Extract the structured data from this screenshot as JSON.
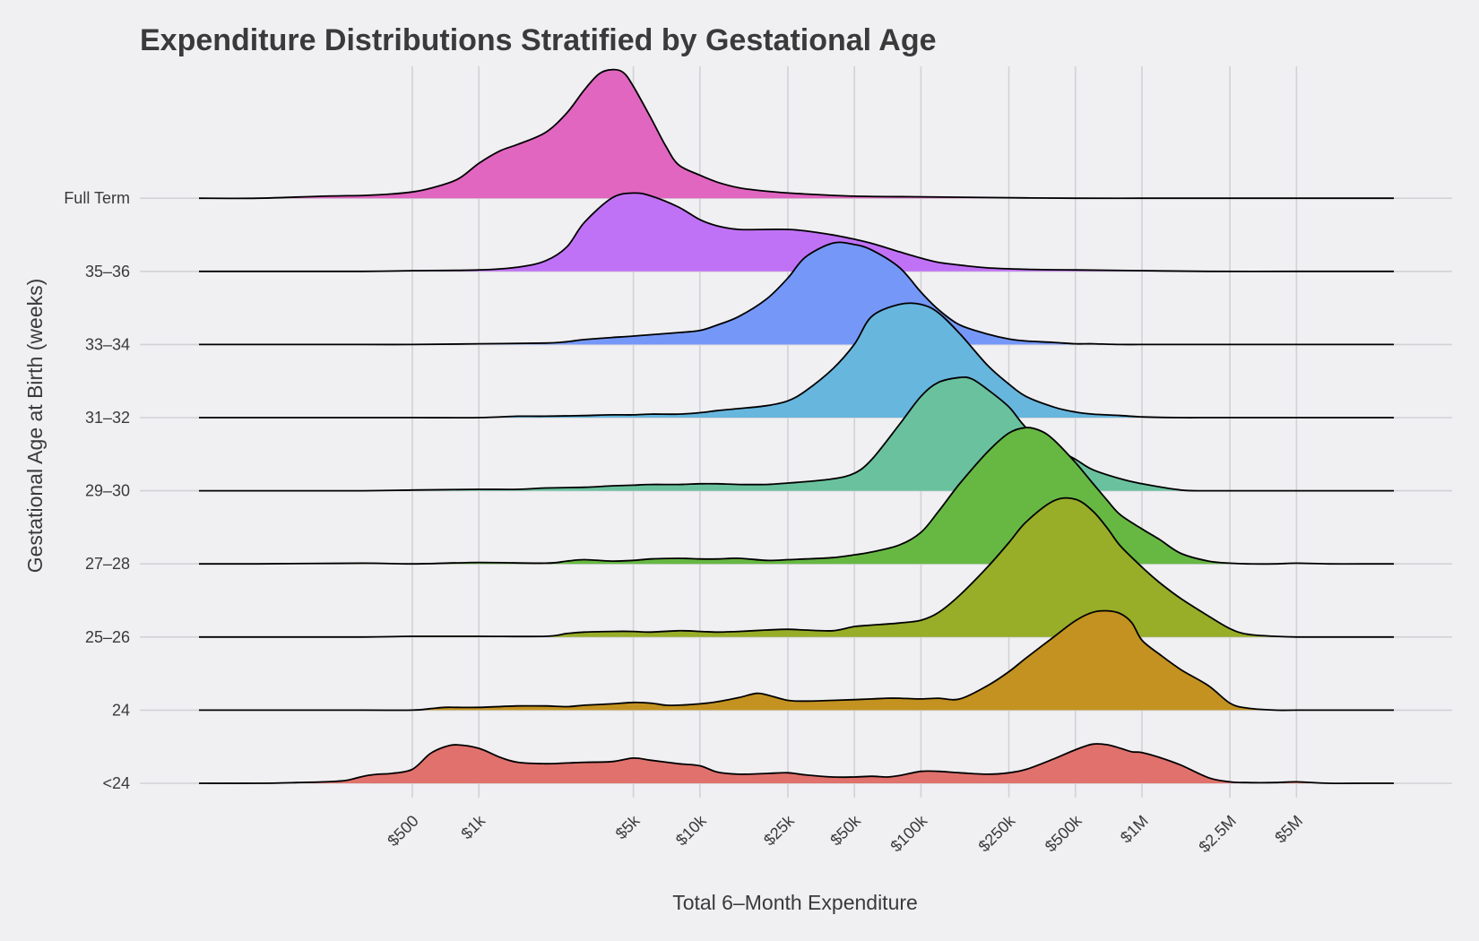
{
  "chart_data": {
    "type": "ridgeline",
    "title": "Expenditure Distributions Stratified by Gestational Age",
    "xlabel": "Total 6–Month Expenditure",
    "ylabel": "Gestational Age at Birth (weeks)",
    "x_scale": "log",
    "x_ticks": [
      {
        "value": 500,
        "label": "$500"
      },
      {
        "value": 1000,
        "label": "$1k"
      },
      {
        "value": 5000,
        "label": "$5k"
      },
      {
        "value": 10000,
        "label": "$10k"
      },
      {
        "value": 25000,
        "label": "$25k"
      },
      {
        "value": 50000,
        "label": "$50k"
      },
      {
        "value": 100000,
        "label": "$100k"
      },
      {
        "value": 250000,
        "label": "$250k"
      },
      {
        "value": 500000,
        "label": "$500k"
      },
      {
        "value": 1000000,
        "label": "$1M"
      },
      {
        "value": 2500000,
        "label": "$2.5M"
      },
      {
        "value": 5000000,
        "label": "$5M"
      }
    ],
    "grid": true,
    "legend": "none",
    "series": [
      {
        "name": "<24",
        "color": "#e0716c",
        "x": [
          50,
          100,
          150,
          200,
          250,
          300,
          350,
          400,
          500,
          600,
          700,
          800,
          1000,
          1250,
          1500,
          2000,
          2500,
          3000,
          4000,
          5000,
          6000,
          8000,
          10000,
          12000,
          15000,
          20000,
          25000,
          30000,
          40000,
          50000,
          60000,
          70000,
          80000,
          100000,
          120000,
          150000,
          200000,
          250000,
          300000,
          400000,
          500000,
          600000,
          700000,
          800000,
          900000,
          1000000,
          1200000,
          1500000,
          2000000,
          2500000,
          3000000,
          4000000,
          5000000,
          7000000,
          10000000,
          20000000
        ],
        "y": [
          0,
          0,
          0.01,
          0.02,
          0.04,
          0.1,
          0.13,
          0.14,
          0.2,
          0.42,
          0.52,
          0.55,
          0.5,
          0.37,
          0.3,
          0.28,
          0.29,
          0.3,
          0.31,
          0.36,
          0.33,
          0.28,
          0.25,
          0.16,
          0.13,
          0.14,
          0.15,
          0.12,
          0.09,
          0.09,
          0.1,
          0.09,
          0.11,
          0.17,
          0.17,
          0.15,
          0.13,
          0.15,
          0.2,
          0.35,
          0.48,
          0.56,
          0.55,
          0.5,
          0.45,
          0.44,
          0.37,
          0.26,
          0.08,
          0.02,
          0.01,
          0.01,
          0.02,
          0,
          0,
          0
        ]
      },
      {
        "name": "24",
        "color": "#c39220",
        "x": [
          50,
          100,
          300,
          500,
          600,
          700,
          800,
          1000,
          1500,
          2000,
          2500,
          3000,
          4000,
          5000,
          6000,
          7000,
          8000,
          10000,
          12000,
          15000,
          18000,
          20000,
          25000,
          30000,
          40000,
          50000,
          60000,
          70000,
          80000,
          100000,
          120000,
          150000,
          200000,
          250000,
          300000,
          400000,
          500000,
          600000,
          700000,
          800000,
          900000,
          1000000,
          1200000,
          1500000,
          2000000,
          2500000,
          3000000,
          4000000,
          5000000,
          7000000,
          10000000,
          20000000
        ],
        "y": [
          0,
          0,
          0,
          0,
          0.02,
          0.04,
          0.04,
          0.04,
          0.06,
          0.06,
          0.05,
          0.07,
          0.09,
          0.11,
          0.1,
          0.07,
          0.07,
          0.09,
          0.12,
          0.18,
          0.24,
          0.22,
          0.14,
          0.13,
          0.14,
          0.15,
          0.16,
          0.17,
          0.17,
          0.16,
          0.17,
          0.16,
          0.35,
          0.55,
          0.75,
          1.05,
          1.28,
          1.4,
          1.42,
          1.38,
          1.25,
          1.0,
          0.8,
          0.58,
          0.35,
          0.1,
          0.03,
          0,
          0,
          0,
          0,
          0
        ]
      },
      {
        "name": "25–26",
        "color": "#98ad28",
        "x": [
          50,
          100,
          300,
          500,
          1000,
          2000,
          2500,
          3000,
          4000,
          5000,
          6000,
          8000,
          10000,
          12000,
          15000,
          20000,
          25000,
          30000,
          40000,
          50000,
          60000,
          80000,
          100000,
          120000,
          150000,
          200000,
          250000,
          300000,
          400000,
          500000,
          600000,
          700000,
          800000,
          1000000,
          1200000,
          1500000,
          2000000,
          2500000,
          3000000,
          4000000,
          5000000,
          7000000,
          10000000,
          20000000
        ],
        "y": [
          0,
          0,
          0,
          0.01,
          0.01,
          0.01,
          0.05,
          0.07,
          0.08,
          0.08,
          0.07,
          0.09,
          0.08,
          0.07,
          0.08,
          0.1,
          0.11,
          0.1,
          0.09,
          0.15,
          0.17,
          0.2,
          0.24,
          0.35,
          0.6,
          1.0,
          1.35,
          1.65,
          1.95,
          1.97,
          1.8,
          1.55,
          1.3,
          1.0,
          0.78,
          0.55,
          0.3,
          0.12,
          0.04,
          0.01,
          0,
          0,
          0,
          0
        ]
      },
      {
        "name": "27–28",
        "color": "#67b843",
        "x": [
          50,
          100,
          300,
          500,
          1000,
          2000,
          2500,
          3000,
          4000,
          5000,
          6000,
          8000,
          10000,
          12000,
          15000,
          20000,
          25000,
          30000,
          40000,
          50000,
          60000,
          80000,
          100000,
          120000,
          150000,
          200000,
          250000,
          300000,
          350000,
          400000,
          500000,
          600000,
          700000,
          800000,
          1000000,
          1200000,
          1500000,
          2000000,
          2500000,
          3000000,
          4000000,
          5000000,
          7000000,
          10000000,
          20000000
        ],
        "y": [
          0,
          0,
          0.01,
          0,
          0.02,
          0.01,
          0.04,
          0.06,
          0.04,
          0.05,
          0.07,
          0.08,
          0.07,
          0.07,
          0.08,
          0.05,
          0.06,
          0.07,
          0.09,
          0.13,
          0.17,
          0.27,
          0.45,
          0.75,
          1.15,
          1.6,
          1.87,
          1.95,
          1.9,
          1.77,
          1.45,
          1.15,
          0.9,
          0.7,
          0.5,
          0.35,
          0.15,
          0.04,
          0.01,
          0,
          0,
          0.01,
          0,
          0,
          0
        ]
      },
      {
        "name": "29–30",
        "color": "#6ac19e",
        "x": [
          50,
          100,
          300,
          500,
          1000,
          1500,
          2000,
          3000,
          4000,
          5000,
          6000,
          8000,
          10000,
          12000,
          15000,
          20000,
          25000,
          30000,
          40000,
          50000,
          60000,
          80000,
          100000,
          120000,
          150000,
          170000,
          200000,
          250000,
          300000,
          400000,
          500000,
          600000,
          800000,
          1000000,
          1500000,
          2000000,
          2500000,
          3000000,
          5000000,
          10000000,
          20000000
        ],
        "y": [
          0,
          0,
          0,
          0.01,
          0.02,
          0.02,
          0.04,
          0.05,
          0.07,
          0.08,
          0.09,
          0.09,
          0.1,
          0.1,
          0.09,
          0.09,
          0.11,
          0.13,
          0.17,
          0.25,
          0.45,
          0.95,
          1.35,
          1.55,
          1.62,
          1.6,
          1.45,
          1.2,
          0.9,
          0.62,
          0.45,
          0.3,
          0.17,
          0.1,
          0.01,
          0,
          0,
          0,
          0,
          0,
          0
        ]
      },
      {
        "name": "31–32",
        "color": "#67b6de",
        "x": [
          50,
          100,
          300,
          500,
          1000,
          1500,
          2000,
          3000,
          4000,
          5000,
          6000,
          8000,
          10000,
          12000,
          15000,
          20000,
          25000,
          30000,
          40000,
          50000,
          60000,
          80000,
          100000,
          120000,
          150000,
          200000,
          250000,
          300000,
          400000,
          500000,
          600000,
          800000,
          1000000,
          1500000,
          2000000,
          3000000,
          5000000,
          10000000,
          20000000
        ],
        "y": [
          0,
          0,
          0,
          0,
          0,
          0.02,
          0.02,
          0.03,
          0.04,
          0.04,
          0.05,
          0.05,
          0.07,
          0.1,
          0.13,
          0.17,
          0.24,
          0.38,
          0.7,
          1.05,
          1.45,
          1.62,
          1.62,
          1.5,
          1.2,
          0.75,
          0.48,
          0.3,
          0.15,
          0.08,
          0.05,
          0.03,
          0.01,
          0,
          0,
          0,
          0,
          0,
          0
        ]
      },
      {
        "name": "33–34",
        "color": "#7598f8",
        "x": [
          50,
          100,
          300,
          500,
          1000,
          2000,
          2500,
          3000,
          4000,
          5000,
          6000,
          8000,
          10000,
          12000,
          15000,
          20000,
          25000,
          30000,
          40000,
          50000,
          60000,
          80000,
          100000,
          120000,
          150000,
          200000,
          250000,
          300000,
          400000,
          500000,
          600000,
          800000,
          1000000,
          1500000,
          2000000,
          3000000,
          5000000,
          10000000,
          20000000
        ],
        "y": [
          0,
          0,
          0,
          0,
          0.01,
          0.02,
          0.04,
          0.07,
          0.1,
          0.12,
          0.14,
          0.17,
          0.2,
          0.28,
          0.4,
          0.65,
          0.95,
          1.25,
          1.45,
          1.43,
          1.35,
          1.1,
          0.75,
          0.5,
          0.28,
          0.15,
          0.08,
          0.05,
          0.03,
          0.01,
          0.01,
          0,
          0,
          0,
          0,
          0,
          0,
          0,
          0
        ]
      },
      {
        "name": "35–36",
        "color": "#c072f6",
        "x": [
          50,
          100,
          300,
          500,
          1000,
          1500,
          2000,
          2500,
          3000,
          4000,
          5000,
          6000,
          8000,
          10000,
          12000,
          15000,
          20000,
          25000,
          30000,
          40000,
          50000,
          60000,
          80000,
          100000,
          120000,
          150000,
          200000,
          300000,
          500000,
          1000000,
          2000000,
          5000000,
          10000000,
          20000000
        ],
        "y": [
          0,
          0,
          0,
          0.01,
          0.02,
          0.06,
          0.15,
          0.35,
          0.7,
          1.05,
          1.12,
          1.08,
          0.92,
          0.74,
          0.65,
          0.6,
          0.6,
          0.6,
          0.58,
          0.52,
          0.46,
          0.4,
          0.28,
          0.19,
          0.13,
          0.09,
          0.05,
          0.03,
          0.02,
          0.01,
          0,
          0,
          0,
          0
        ]
      },
      {
        "name": "Full Term",
        "color": "#e066c0",
        "x": [
          50,
          100,
          200,
          300,
          400,
          500,
          600,
          800,
          1000,
          1250,
          1500,
          2000,
          2500,
          3000,
          3500,
          4000,
          4500,
          5000,
          6000,
          7000,
          8000,
          10000,
          12000,
          15000,
          20000,
          30000,
          50000,
          100000,
          200000,
          500000,
          1000000,
          2000000,
          5000000,
          10000000,
          20000000
        ],
        "y": [
          0,
          0,
          0.03,
          0.04,
          0.06,
          0.09,
          0.14,
          0.27,
          0.5,
          0.68,
          0.77,
          0.94,
          1.22,
          1.55,
          1.78,
          1.84,
          1.8,
          1.6,
          1.15,
          0.75,
          0.48,
          0.33,
          0.23,
          0.15,
          0.1,
          0.06,
          0.03,
          0.02,
          0.01,
          0,
          0,
          0,
          0,
          0,
          0
        ]
      }
    ]
  }
}
